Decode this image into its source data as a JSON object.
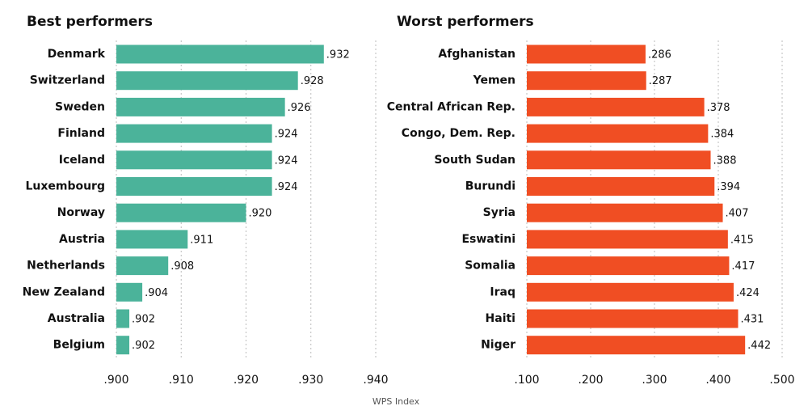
{
  "chart_data": [
    {
      "type": "bar",
      "orientation": "horizontal",
      "title": "Best performers",
      "color": "#4bb39a",
      "categories": [
        "Denmark",
        "Switzerland",
        "Sweden",
        "Finland",
        "Iceland",
        "Luxembourg",
        "Norway",
        "Austria",
        "Netherlands",
        "New Zealand",
        "Australia",
        "Belgium"
      ],
      "values": [
        0.932,
        0.928,
        0.926,
        0.924,
        0.924,
        0.924,
        0.92,
        0.911,
        0.908,
        0.904,
        0.902,
        0.902
      ],
      "value_labels": [
        ".932",
        ".928",
        ".926",
        ".924",
        ".924",
        ".924",
        ".920",
        ".911",
        ".908",
        ".904",
        ".902",
        ".902"
      ],
      "xlim": [
        0.9,
        0.94
      ],
      "xticks": [
        {
          "value": 0.9,
          "label": ".900"
        },
        {
          "value": 0.91,
          "label": ".910"
        },
        {
          "value": 0.92,
          "label": ".920"
        },
        {
          "value": 0.93,
          "label": ".930"
        },
        {
          "value": 0.94,
          "label": ".940"
        }
      ],
      "grid": true
    },
    {
      "type": "bar",
      "orientation": "horizontal",
      "title": "Worst performers",
      "color": "#f04e23",
      "categories": [
        "Afghanistan",
        "Yemen",
        "Central African Rep.",
        "Congo, Dem. Rep.",
        "South Sudan",
        "Burundi",
        "Syria",
        "Eswatini",
        "Somalia",
        "Iraq",
        "Haiti",
        "Niger"
      ],
      "values": [
        0.286,
        0.287,
        0.378,
        0.384,
        0.388,
        0.394,
        0.407,
        0.415,
        0.417,
        0.424,
        0.431,
        0.442
      ],
      "value_labels": [
        ".286",
        ".287",
        ".378",
        ".384",
        ".388",
        ".394",
        ".407",
        ".415",
        ".417",
        ".424",
        ".431",
        ".442"
      ],
      "xlim": [
        0.1,
        0.5
      ],
      "xticks": [
        {
          "value": 0.1,
          "label": ".100"
        },
        {
          "value": 0.2,
          "label": ".200"
        },
        {
          "value": 0.3,
          "label": ".300"
        },
        {
          "value": 0.4,
          "label": ".400"
        },
        {
          "value": 0.5,
          "label": ".500"
        }
      ],
      "grid": true
    }
  ],
  "x_axis_label": "WPS Index"
}
